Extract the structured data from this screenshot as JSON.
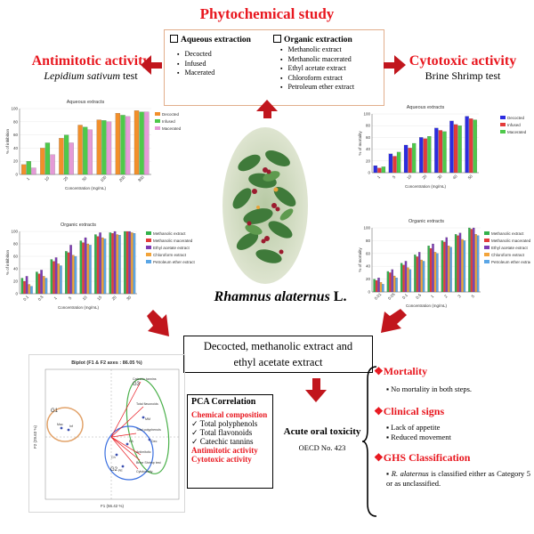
{
  "title": "Phytochemical study",
  "extraction": {
    "aqueous_head": "Aqueous extraction",
    "aqueous_items": [
      "Decocted",
      "Infused",
      "Macerated"
    ],
    "organic_head": "Organic extraction",
    "organic_items": [
      "Methanolic extract",
      "Methanolic macerated",
      "Ethyl acetate extract",
      "Chloroform extract",
      "Petroleum ether extract"
    ]
  },
  "left": {
    "activity": "Antimitotic activity",
    "test_italic": "Lepidium sativum",
    "test_rest": " test"
  },
  "right": {
    "activity": "Cytotoxic activity",
    "test": "Brine Shrimp test"
  },
  "plant_name": {
    "genus_species": "Rhamnus alaternus",
    "author": " L."
  },
  "center_box": {
    "line1": "Decocted, methanolic extract and",
    "line2": "ethyl acetate extract"
  },
  "pca": {
    "heading": "PCA Correlation",
    "chem_head": "Chemical composition",
    "items": [
      "Total polyphenols",
      "Total flavonoids",
      "Catechic tannins"
    ],
    "act1": "Antimitotic activity",
    "act2": "Cytotoxic activity"
  },
  "toxicity": {
    "title": "Acute oral toxicity",
    "guideline": "OECD No. 423"
  },
  "results": {
    "mortality_head": "Mortality",
    "mortality_text": "No mortality in both steps.",
    "signs_head": "Clinical signs",
    "signs": [
      "Lack of appetite",
      "Reduced movement"
    ],
    "ghs_head": "GHS Classification",
    "ghs_italic": "R. alaternus",
    "ghs_rest": " is classified either as Category 5 or as unclassified."
  },
  "colors": {
    "decocted": "#f28f2a",
    "infused": "#4ec94a",
    "macerated": "#e59ad7",
    "methanolic": "#33b24a",
    "meth_macerated": "#e33b3b",
    "ethyl": "#7d3bb3",
    "chloroform": "#f2a43a",
    "petroleum": "#5aa6e6",
    "cyt_decocted": "#2c2ce0",
    "cyt_infused": "#e33b3b",
    "cyt_macerated": "#4ec94a",
    "arrow": "#c1161d"
  },
  "chart_data": [
    {
      "type": "bar",
      "title": "Aqueous extracts",
      "xlabel": "Concentration (mg/mL)",
      "ylabel": "% of inhibition",
      "categories": [
        "1",
        "10",
        "25",
        "50",
        "100",
        "200",
        "300"
      ],
      "ylim": [
        0,
        100
      ],
      "yticks": [
        "0",
        "20",
        "40",
        "60",
        "80",
        "100"
      ],
      "series": [
        {
          "name": "Decocted",
          "values": [
            15,
            40,
            55,
            75,
            83,
            93,
            97
          ]
        },
        {
          "name": "Infused",
          "values": [
            20,
            48,
            60,
            72,
            82,
            90,
            95
          ]
        },
        {
          "name": "Macerated",
          "values": [
            10,
            30,
            48,
            68,
            80,
            88,
            95
          ]
        }
      ]
    },
    {
      "type": "bar",
      "title": "Organic extracts",
      "xlabel": "Concentration (mg/mL)",
      "ylabel": "% of inhibition",
      "categories": [
        "0.1",
        "0.5",
        "1",
        "5",
        "10",
        "15",
        "20",
        "30"
      ],
      "ylim": [
        0,
        100
      ],
      "yticks": [
        "0",
        "20",
        "40",
        "60",
        "80",
        "100"
      ],
      "series": [
        {
          "name": "Methanolic extract",
          "values": [
            25,
            35,
            55,
            68,
            85,
            95,
            98,
            100
          ]
        },
        {
          "name": "Methanolic macerated",
          "values": [
            20,
            32,
            52,
            66,
            82,
            92,
            97,
            100
          ]
        },
        {
          "name": "Ethyl acetate extract",
          "values": [
            28,
            38,
            58,
            78,
            90,
            98,
            100,
            100
          ]
        },
        {
          "name": "Chloroform extract",
          "values": [
            15,
            28,
            48,
            62,
            80,
            90,
            95,
            98
          ]
        },
        {
          "name": "Petroleum ether extract",
          "values": [
            12,
            25,
            45,
            60,
            78,
            88,
            94,
            97
          ]
        }
      ]
    },
    {
      "type": "bar",
      "title": "Aqueous extracts",
      "xlabel": "Concentration (mg/mL)",
      "ylabel": "% of mortality",
      "categories": [
        "1",
        "5",
        "10",
        "20",
        "30",
        "40",
        "50"
      ],
      "ylim": [
        0,
        100
      ],
      "yticks": [
        "0",
        "20",
        "40",
        "60",
        "80",
        "100"
      ],
      "series": [
        {
          "name": "Decocted",
          "values": [
            12,
            32,
            47,
            60,
            76,
            88,
            96
          ]
        },
        {
          "name": "Infused",
          "values": [
            8,
            28,
            42,
            58,
            72,
            82,
            92
          ]
        },
        {
          "name": "Macerated",
          "values": [
            10,
            35,
            50,
            62,
            70,
            80,
            90
          ]
        }
      ]
    },
    {
      "type": "bar",
      "title": "Organic extracts",
      "xlabel": "Concentration (mg/mL)",
      "ylabel": "% of mortality",
      "categories": [
        "0.01",
        "0.05",
        "0.1",
        "0.5",
        "1",
        "2",
        "3",
        "5"
      ],
      "ylim": [
        0,
        100
      ],
      "yticks": [
        "0",
        "20",
        "40",
        "60",
        "80",
        "100"
      ],
      "series": [
        {
          "name": "Methanolic extract",
          "values": [
            20,
            32,
            45,
            58,
            72,
            80,
            90,
            100
          ]
        },
        {
          "name": "Methanolic macerated",
          "values": [
            18,
            30,
            42,
            55,
            68,
            78,
            88,
            98
          ]
        },
        {
          "name": "Ethyl acetate extract",
          "values": [
            22,
            35,
            48,
            62,
            75,
            85,
            92,
            100
          ]
        },
        {
          "name": "Chloroform extract",
          "values": [
            15,
            25,
            38,
            50,
            62,
            72,
            82,
            90
          ]
        },
        {
          "name": "Petroleum ether extract",
          "values": [
            12,
            22,
            35,
            48,
            60,
            70,
            80,
            88
          ]
        }
      ]
    }
  ],
  "biplot": {
    "title": "Biplot (F1 & F2 axes : 86.05 %)",
    "xlabel": "F1 (56.42 %)",
    "ylabel": "F2 (29.63 %)",
    "groups": [
      "G1",
      "G2",
      "G3"
    ],
    "var_labels": [
      "Catechic tannins",
      "Total flavonoids",
      "Total polyphenols",
      "Antimitotic",
      "Brine Shrimp test",
      "Cytotoxicity"
    ],
    "obs_labels": [
      "Mac",
      "Inf",
      "EA",
      "Ch",
      "PE",
      "Dec",
      "MM"
    ]
  }
}
